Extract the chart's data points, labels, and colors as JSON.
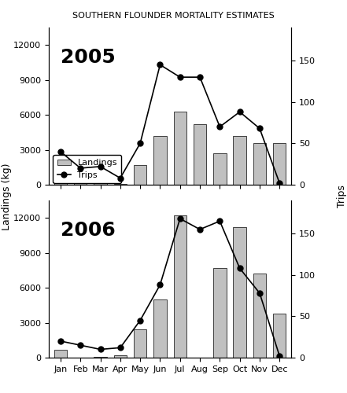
{
  "title": "SOUTHERN FLOUNDER MORTALITY ESTIMATES",
  "months": [
    "Jan",
    "Feb",
    "Mar",
    "Apr",
    "May",
    "Jun",
    "Jul",
    "Aug",
    "Sep",
    "Oct",
    "Nov",
    "Dec"
  ],
  "year2005": {
    "label": "2005",
    "landings": [
      1400,
      300,
      400,
      100,
      1700,
      4200,
      6300,
      5200,
      2700,
      4200,
      3600,
      3600
    ],
    "trips": [
      40,
      20,
      22,
      8,
      50,
      145,
      130,
      130,
      70,
      88,
      68,
      2
    ]
  },
  "year2006": {
    "label": "2006",
    "landings": [
      700,
      0,
      100,
      200,
      2400,
      5000,
      12200,
      0,
      7700,
      11200,
      7200,
      3800
    ],
    "trips": [
      20,
      15,
      10,
      12,
      45,
      88,
      168,
      155,
      165,
      108,
      78,
      2
    ]
  },
  "bar_color": "#c0c0c0",
  "line_color": "#000000",
  "ylabel_left": "Landings (kg)",
  "ylabel_right": "Trips",
  "ylim_landings": [
    0,
    13500
  ],
  "ylim_trips": [
    0,
    190
  ],
  "yticks_landings": [
    0,
    3000,
    6000,
    9000,
    12000
  ],
  "yticks_trips": [
    0,
    50,
    100,
    150
  ],
  "legend_labels": [
    "Landings",
    "Trips"
  ],
  "year_label_fontsize": 18,
  "title_fontsize": 8.0
}
